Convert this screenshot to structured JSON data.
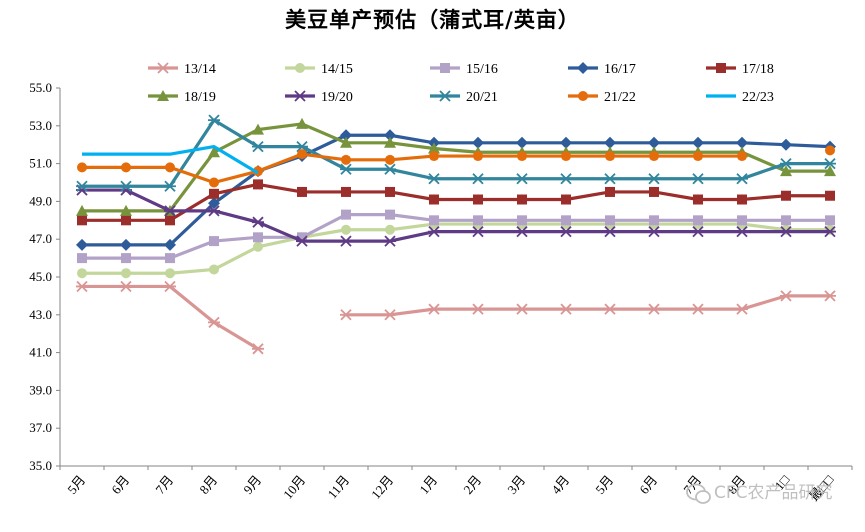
{
  "chart_data": {
    "type": "line",
    "title": "美豆单产预估（蒲式耳/英亩）",
    "categories": [
      "5月",
      "6月",
      "7月",
      "8月",
      "9月",
      "10月",
      "11月",
      "12月",
      "1月",
      "2月",
      "3月",
      "4月",
      "5月",
      "6月",
      "7月",
      "8月",
      "1□",
      "最□□"
    ],
    "ylim": [
      35.0,
      55.0
    ],
    "yticks": [
      "35.0",
      "37.0",
      "39.0",
      "41.0",
      "43.0",
      "45.0",
      "47.0",
      "49.0",
      "51.0",
      "53.0",
      "55.0"
    ],
    "grid": false,
    "legend_position": "top",
    "series": [
      {
        "name": "13/14",
        "color": "#d99594",
        "marker": "star",
        "values": [
          44.5,
          44.5,
          44.5,
          42.6,
          41.2,
          null,
          43.0,
          43.0,
          43.3,
          43.3,
          43.3,
          43.3,
          43.3,
          43.3,
          43.3,
          43.3,
          44.0,
          44.0
        ]
      },
      {
        "name": "14/15",
        "color": "#c3d69b",
        "marker": "circle",
        "values": [
          45.2,
          45.2,
          45.2,
          45.4,
          46.6,
          47.1,
          47.5,
          47.5,
          47.8,
          47.8,
          47.8,
          47.8,
          47.8,
          47.8,
          47.8,
          47.8,
          47.5,
          47.5
        ]
      },
      {
        "name": "15/16",
        "color": "#b3a2c7",
        "marker": "square",
        "values": [
          46.0,
          46.0,
          46.0,
          46.9,
          47.1,
          47.1,
          48.3,
          48.3,
          48.0,
          48.0,
          48.0,
          48.0,
          48.0,
          48.0,
          48.0,
          48.0,
          48.0,
          48.0
        ]
      },
      {
        "name": "16/17",
        "color": "#2e5c9a",
        "marker": "diamond",
        "values": [
          46.7,
          46.7,
          46.7,
          48.9,
          50.6,
          51.4,
          52.5,
          52.5,
          52.1,
          52.1,
          52.1,
          52.1,
          52.1,
          52.1,
          52.1,
          52.1,
          52.0,
          51.9
        ]
      },
      {
        "name": "17/18",
        "color": "#9b2d2a",
        "marker": "square",
        "values": [
          48.0,
          48.0,
          48.0,
          49.4,
          49.9,
          49.5,
          49.5,
          49.5,
          49.1,
          49.1,
          49.1,
          49.1,
          49.5,
          49.5,
          49.1,
          49.1,
          49.3,
          49.3
        ]
      },
      {
        "name": "18/19",
        "color": "#77933c",
        "marker": "triangle",
        "values": [
          48.5,
          48.5,
          48.5,
          51.6,
          52.8,
          53.1,
          52.1,
          52.1,
          51.8,
          51.6,
          51.6,
          51.6,
          51.6,
          51.6,
          51.6,
          51.6,
          50.6,
          50.6
        ]
      },
      {
        "name": "19/20",
        "color": "#5f3b86",
        "marker": "star",
        "values": [
          49.6,
          49.6,
          48.5,
          48.5,
          47.9,
          46.9,
          46.9,
          46.9,
          47.4,
          47.4,
          47.4,
          47.4,
          47.4,
          47.4,
          47.4,
          47.4,
          47.4,
          47.4
        ]
      },
      {
        "name": "20/21",
        "color": "#31859c",
        "marker": "star",
        "values": [
          49.8,
          49.8,
          49.8,
          53.3,
          51.9,
          51.9,
          50.7,
          50.7,
          50.2,
          50.2,
          50.2,
          50.2,
          50.2,
          50.2,
          50.2,
          50.2,
          51.0,
          51.0
        ]
      },
      {
        "name": "21/22",
        "color": "#e46c0a",
        "marker": "circle",
        "values": [
          50.8,
          50.8,
          50.8,
          50.0,
          50.6,
          51.5,
          51.2,
          51.2,
          51.4,
          51.4,
          51.4,
          51.4,
          51.4,
          51.4,
          51.4,
          51.4,
          null,
          51.7
        ]
      },
      {
        "name": "22/23",
        "color": "#00b0f0",
        "marker": "none",
        "values": [
          51.5,
          51.5,
          51.5,
          51.9,
          50.5,
          null,
          null,
          null,
          null,
          null,
          null,
          null,
          null,
          null,
          null,
          null,
          null,
          null
        ]
      }
    ]
  },
  "watermark": {
    "text": "CFC农产品研究",
    "icon": "wechat-icon"
  }
}
